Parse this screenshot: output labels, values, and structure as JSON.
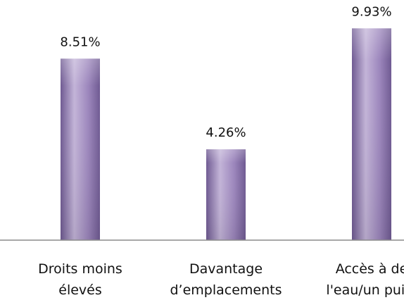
{
  "chart_data": {
    "type": "bar",
    "categories": [
      [
        "Droits moins",
        "élevés"
      ],
      [
        "Davantage",
        "d’emplacements"
      ],
      [
        "Accès à de",
        "l'eau/un puits"
      ]
    ],
    "values": [
      8.51,
      4.26,
      9.93
    ],
    "data_labels": [
      "8.51%",
      "4.26%",
      "9.93%"
    ],
    "unit": "%",
    "ylim": [
      0,
      10.6
    ],
    "grid": false,
    "legend": "none",
    "colors": {
      "bar_light": "#c3b4d8",
      "bar_mid": "#9d87bd",
      "bar_dark": "#6f5a92",
      "axis": "#8c8c8c"
    }
  }
}
